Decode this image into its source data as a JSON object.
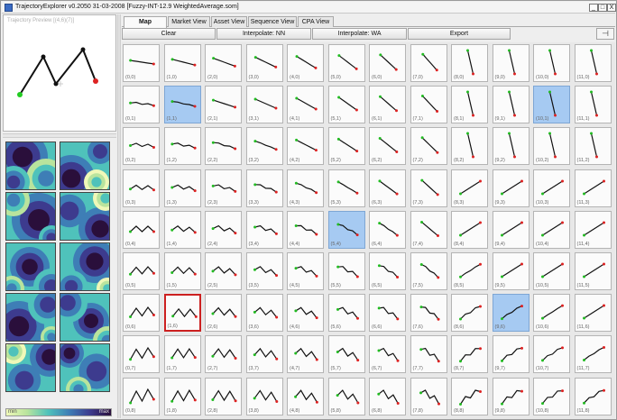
{
  "window": {
    "title": "TrajectoryExplorer v0.2050 31-03-2008 [Fuzzy-INT-12.9 WeightedAverage.som]",
    "controls": [
      "_",
      "□",
      "X"
    ]
  },
  "preview": {
    "label": "Trajectory Preview [(4,6)(7)]"
  },
  "tabs": [
    {
      "label": "Map Initializer",
      "active": true
    },
    {
      "label": "Market View",
      "active": false
    },
    {
      "label": "Asset View",
      "active": false
    },
    {
      "label": "Sequence View",
      "active": false
    },
    {
      "label": "CPA View",
      "active": false
    }
  ],
  "inner_controls": [
    "_",
    "□",
    "X"
  ],
  "toolbar": {
    "clear": "Clear",
    "interpolate_nn": "Interpolate: NN",
    "interpolate_wa": "Interpolate: WA",
    "export": "Export",
    "tool_icon": "pin-icon"
  },
  "legend": {
    "min": "min",
    "max": "max"
  },
  "colors": {
    "highlight": "#a6caf2",
    "selection": "#cc2020",
    "start_point": "#22bb22",
    "end_point": "#dd2222"
  },
  "grid": {
    "highlighted": [
      "1,1",
      "10,1",
      "5,4",
      "9,6"
    ],
    "selected": "1,6",
    "rows": [
      [
        "(0,0)",
        "(1,0)",
        "(2,0)",
        "(3,0)",
        "(4,0)",
        "(5,0)",
        "(6,0)",
        "(7,0)",
        "(8,0)",
        "(9,0)",
        "(10,0)",
        "(11,0)"
      ],
      [
        "(0,1)",
        "(1,1)",
        "(2,1)",
        "(3,1)",
        "(4,1)",
        "(5,1)",
        "(6,1)",
        "(7,1)",
        "(8,1)",
        "(9,1)",
        "(10,1)",
        "(11,1)"
      ],
      [
        "(0,2)",
        "(1,2)",
        "(2,2)",
        "(3,2)",
        "(4,2)",
        "(5,2)",
        "(6,2)",
        "(7,2)",
        "(8,2)",
        "(9,2)",
        "(10,2)",
        "(11,2)"
      ],
      [
        "(0,3)",
        "(1,3)",
        "(2,3)",
        "(3,3)",
        "(4,3)",
        "(5,3)",
        "(6,3)",
        "(7,3)",
        "(8,3)",
        "(9,3)",
        "(10,3)",
        "(11,3)"
      ],
      [
        "(0,4)",
        "(1,4)",
        "(2,4)",
        "(3,4)",
        "(4,4)",
        "(5,4)",
        "(6,4)",
        "(7,4)",
        "(8,4)",
        "(9,4)",
        "(10,4)",
        "(11,4)"
      ],
      [
        "(0,5)",
        "(1,5)",
        "(2,5)",
        "(3,5)",
        "(4,5)",
        "(5,5)",
        "(6,5)",
        "(7,5)",
        "(8,5)",
        "(9,5)",
        "(10,5)",
        "(11,5)"
      ],
      [
        "(0,6)",
        "(1,6)",
        "(2,6)",
        "(3,6)",
        "(4,6)",
        "(5,6)",
        "(6,6)",
        "(7,6)",
        "(8,6)",
        "(9,6)",
        "(10,6)",
        "(11,6)"
      ],
      [
        "(0,7)",
        "(1,7)",
        "(2,7)",
        "(3,7)",
        "(4,7)",
        "(5,7)",
        "(6,7)",
        "(7,7)",
        "(8,7)",
        "(9,7)",
        "(10,7)",
        "(11,7)"
      ],
      [
        "(0,8)",
        "(1,8)",
        "(2,8)",
        "(3,8)",
        "(4,8)",
        "(5,8)",
        "(6,8)",
        "(7,8)",
        "(8,8)",
        "(9,8)",
        "(10,8)",
        "(11,8)"
      ]
    ]
  }
}
